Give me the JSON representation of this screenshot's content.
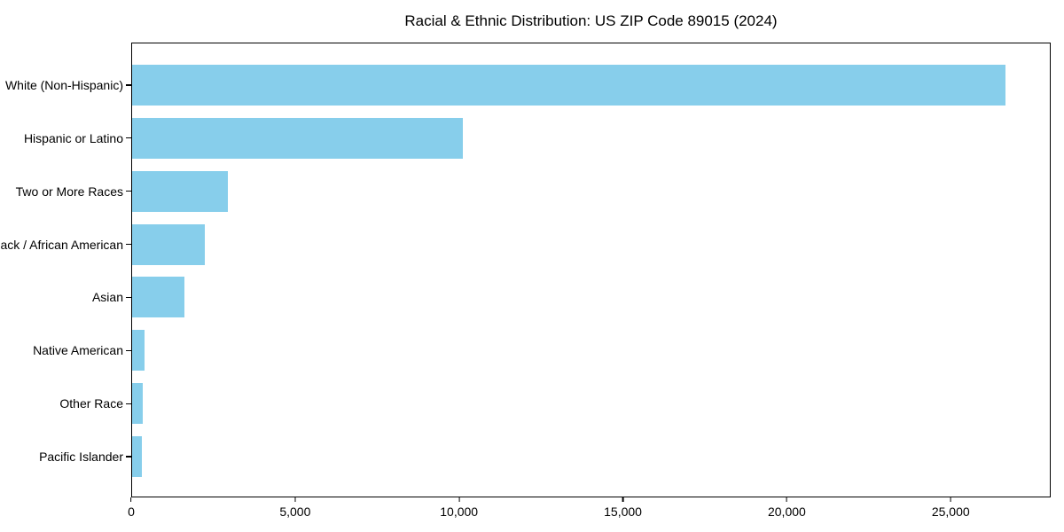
{
  "chart_data": {
    "type": "bar",
    "orientation": "horizontal",
    "title": "Racial & Ethnic Distribution: US ZIP Code 89015 (2024)",
    "categories": [
      "White (Non-Hispanic)",
      "Hispanic or Latino",
      "Two or More Races",
      "Black / African American",
      "Asian",
      "Native American",
      "Other Race",
      "Pacific Islander"
    ],
    "values": [
      26700,
      10100,
      2930,
      2230,
      1600,
      380,
      335,
      295
    ],
    "xlabel": "",
    "ylabel": "",
    "xlim": [
      0,
      28050
    ],
    "xtick_values": [
      0,
      5000,
      10000,
      15000,
      20000,
      25000
    ],
    "xtick_labels": [
      "0",
      "5,000",
      "10,000",
      "15,000",
      "20,000",
      "25,000"
    ],
    "grid": false,
    "bar_color": "#87ceeb",
    "frame_color": "#000000",
    "text_color": "#000000",
    "background_color": "#ffffff"
  }
}
